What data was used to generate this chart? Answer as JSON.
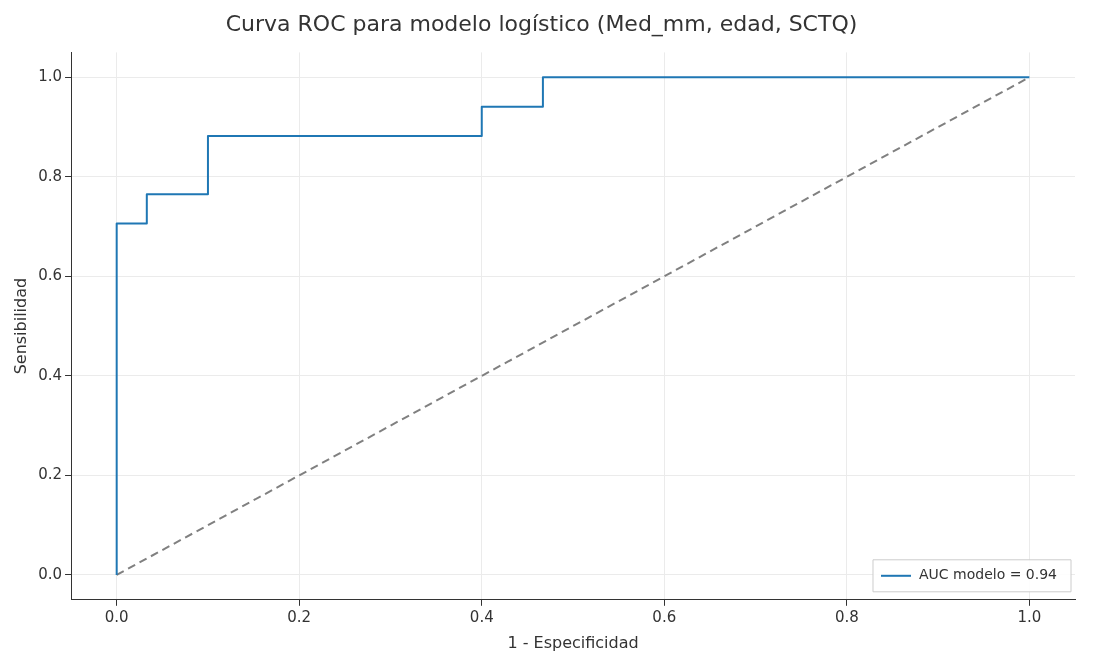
{
  "chart_data": {
    "type": "line",
    "title": "Curva ROC para modelo logístico (Med_mm, edad, SCTQ)",
    "xlabel": "1 - Especificidad",
    "ylabel": "Sensibilidad",
    "series": [
      {
        "name": "AUC modelo = 0.94",
        "color": "#1f77b4",
        "line_style": "solid",
        "x": [
          0,
          0,
          0.033,
          0.033,
          0.1,
          0.1,
          0.4,
          0.4,
          0.467,
          0.467,
          1
        ],
        "values": [
          0,
          0.706,
          0.706,
          0.765,
          0.765,
          0.882,
          0.882,
          0.941,
          0.941,
          1,
          1
        ]
      },
      {
        "color": "#808080",
        "line_style": "dashed",
        "x": [
          0,
          1
        ],
        "values": [
          0,
          1
        ]
      }
    ],
    "xlim": [
      -0.05,
      1.05
    ],
    "ylim": [
      -0.05,
      1.05
    ],
    "xticks": [
      {
        "value": 0,
        "label": "0.0"
      },
      {
        "value": 0.2,
        "label": "0.2"
      },
      {
        "value": 0.4,
        "label": "0.4"
      },
      {
        "value": 0.6,
        "label": "0.6"
      },
      {
        "value": 0.8,
        "label": "0.8"
      },
      {
        "value": 1,
        "label": "1.0"
      }
    ],
    "yticks": [
      {
        "value": 0,
        "label": "0.0"
      },
      {
        "value": 0.2,
        "label": "0.2"
      },
      {
        "value": 0.4,
        "label": "0.4"
      },
      {
        "value": 0.6,
        "label": "0.6"
      },
      {
        "value": 0.8,
        "label": "0.8"
      },
      {
        "value": 1,
        "label": "1.0"
      }
    ],
    "grid": true,
    "legend": "bottom right",
    "marker": "none"
  }
}
